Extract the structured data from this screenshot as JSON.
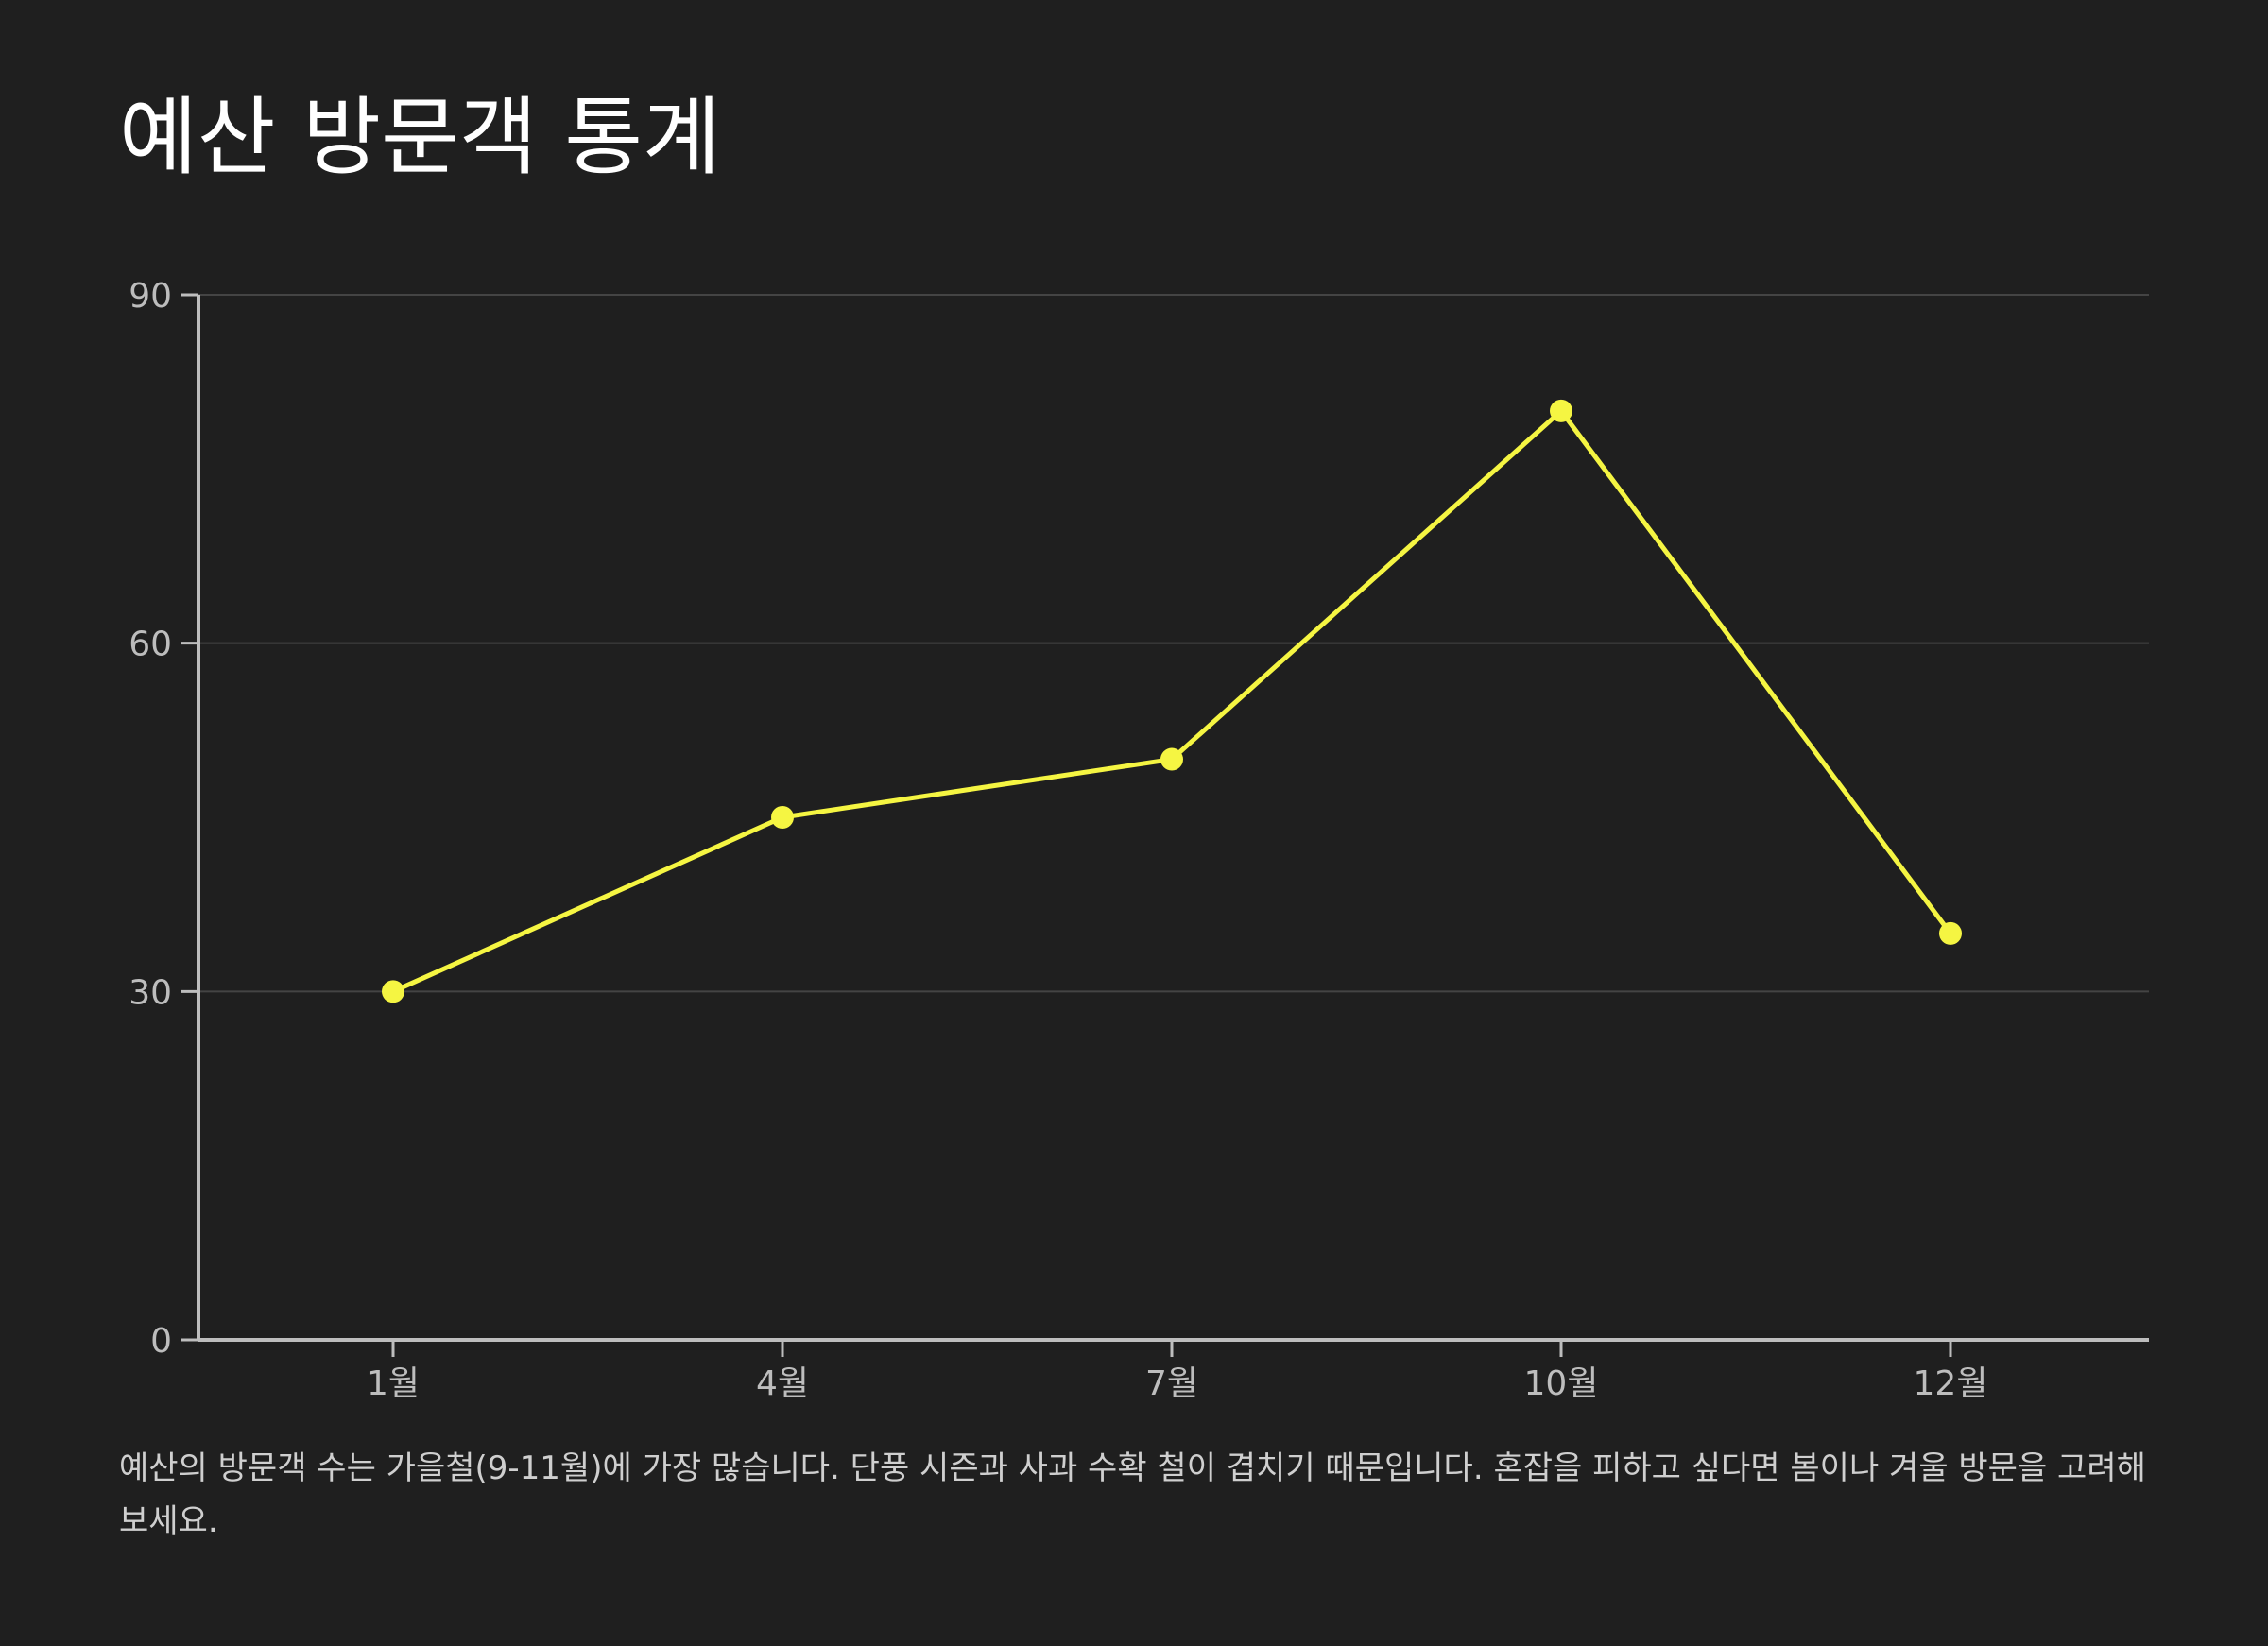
{
  "chart_data": {
    "type": "line",
    "title": "예산 방문객 통계",
    "xlabel": "",
    "ylabel": "",
    "categories": [
      "1월",
      "4월",
      "7월",
      "10월",
      "12월"
    ],
    "series": [
      {
        "values": [
          30,
          45,
          50,
          80,
          35
        ]
      }
    ],
    "ylim": [
      0,
      90
    ],
    "yticks": [
      0,
      30,
      60,
      90
    ],
    "grid": true,
    "colors": {
      "line": "#f5f542",
      "background": "#1f1f1f",
      "grid": "#444444",
      "axis": "#bdbdbd"
    }
  },
  "caption": "예산의 방문객 수는 가을철(9-11월)에 가장 많습니다. 단풍 시즌과 사과 수확 철이 겹치기 때문입니다. 혼잡을 피하고 싶다면 봄이나 겨울 방문을 고려해보세요."
}
